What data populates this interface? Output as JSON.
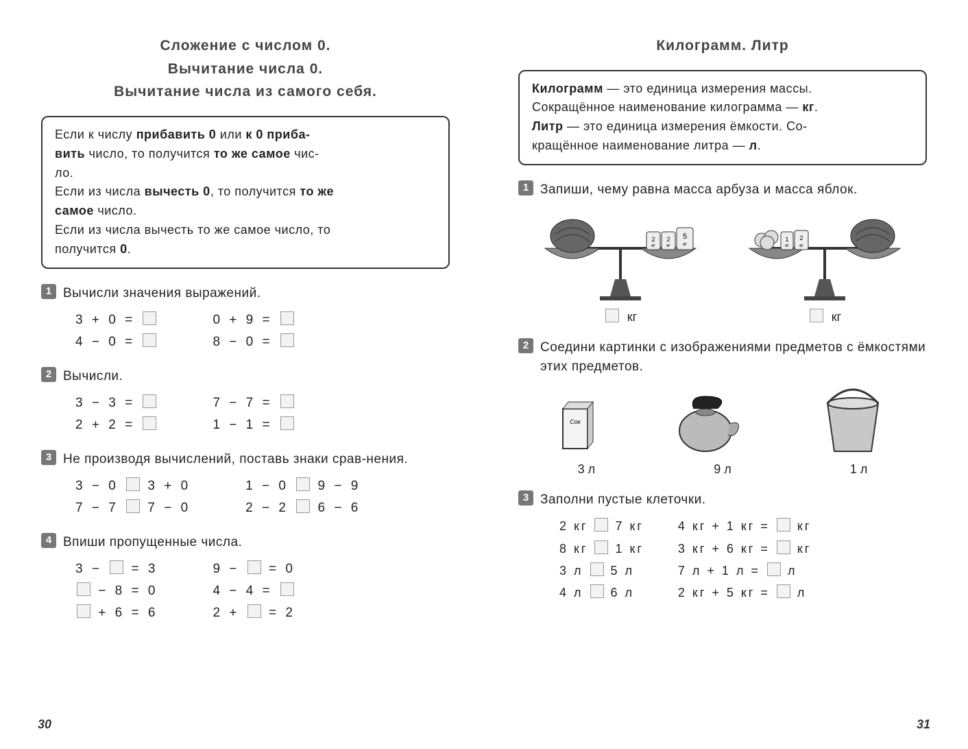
{
  "left": {
    "title_l1": "Сложение  с  числом  0.",
    "title_l2": "Вычитание  числа  0.",
    "title_l3": "Вычитание  числа  из  самого  себя.",
    "rule_html": "Если к числу <b>прибавить 0</b> или <b>к 0 приба-<br>вить</b> число, то получится <b>то же самое</b> чис-<br>ло.<br>Если из числа <b>вычесть 0</b>, то получится <b>то же<br>самое</b> число.<br>Если из числа вычесть то же самое число, то<br>получится <b>0</b>.",
    "task1": {
      "num": "1",
      "text": "Вычисли  значения  выражений.",
      "colA": [
        "3 + 0 =",
        "4 − 0 ="
      ],
      "colB": [
        "0 + 9 =",
        "8 − 0 ="
      ]
    },
    "task2": {
      "num": "2",
      "text": "Вычисли.",
      "colA": [
        "3 − 3 =",
        "2 + 2 ="
      ],
      "colB": [
        "7 − 7 =",
        "1 − 1 ="
      ]
    },
    "task3": {
      "num": "3",
      "text": "Не производя вычислений, поставь знаки срав-нения.",
      "colA": [
        "3 − 0 □ 3 + 0",
        "7 − 7 □ 7 − 0"
      ],
      "colB": [
        "1 − 0 □ 9 − 9",
        "2 − 2 □ 6 − 6"
      ]
    },
    "task4": {
      "num": "4",
      "text": "Впиши  пропущенные  числа.",
      "colA": [
        "3 − □ = 3",
        "□ − 8 = 0",
        "□ + 6 = 6"
      ],
      "colB": [
        "9 − □ = 0",
        "4 − 4 = □",
        "2 + □ = 2"
      ]
    },
    "page_num": "30"
  },
  "right": {
    "title": "Килограмм.  Литр",
    "rule_html": "<b>Килограмм</b> — это единица измерения массы.<br>Сокращённое наименование килограмма — <b>кг</b>.<br><b>Литр</b> — это единица измерения ёмкости. Со-<br>кращённое наименование литра — <b>л</b>.",
    "task1": {
      "num": "1",
      "text": "Запиши, чему равна масса арбуза и масса яблок.",
      "kg_a": "кг",
      "kg_b": "кг",
      "weights_left": [
        "2",
        "2",
        "5"
      ],
      "weights_right": [
        "1",
        "2"
      ],
      "weight_unit": "кг"
    },
    "task2": {
      "num": "2",
      "text": "Соедини картинки с изображениями предметов с ёмкостями этих предметов.",
      "caps": [
        "3 л",
        "9 л",
        "1 л"
      ]
    },
    "task3": {
      "num": "3",
      "text": "Заполни  пустые  клеточки.",
      "colA": [
        "2 кг □ 7 кг",
        "8 кг □ 1 кг",
        "3 л □ 5 л",
        "4 л □ 6 л"
      ],
      "colB": [
        "4 кг + 1 кг = □ кг",
        "3 кг + 6 кг = □ кг",
        "7 л + 1 л = □ л",
        "2 кг + 5 кг = □ л"
      ]
    },
    "page_num": "31"
  },
  "style": {
    "text_color": "#222222",
    "badge_bg": "#777777",
    "rule_border": "#333333",
    "blank_border": "#999999",
    "blank_bg": "#f3f3f3",
    "background": "#ffffff",
    "base_font_size_pt": 14
  }
}
